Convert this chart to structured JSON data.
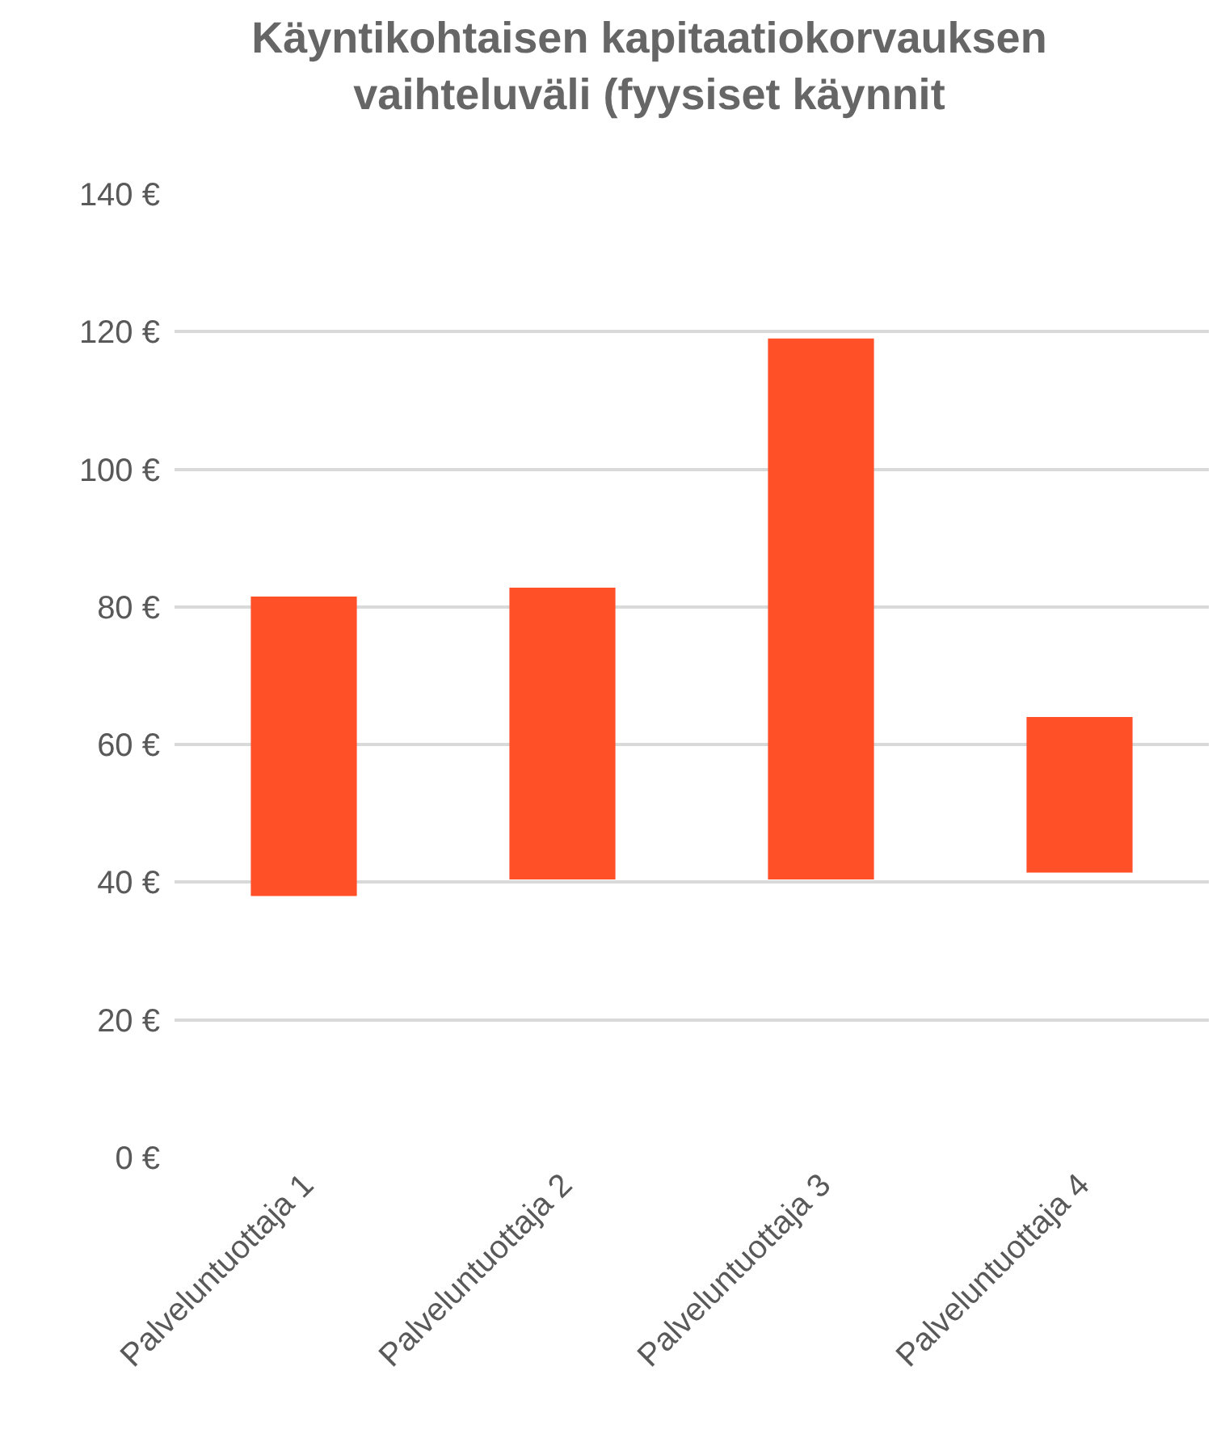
{
  "chart_data": {
    "type": "bar",
    "title": "Käyntikohtaisen kapitaatiokorvauksen\nvaihteluväli (fyysiset käynnit",
    "categories": [
      "Palveluntuottaja 1",
      "Palveluntuottaja 2",
      "Palveluntuottaja 3",
      "Palveluntuottaja 4"
    ],
    "base": [
      38,
      40.4,
      40.4,
      41.4
    ],
    "values": [
      43.5,
      42.4,
      78.6,
      22.6
    ],
    "color": "#ff5028",
    "ylim": [
      0,
      140
    ],
    "yticks": [
      {
        "value": 0,
        "label": "0 €"
      },
      {
        "value": 20,
        "label": "20 €"
      },
      {
        "value": 40,
        "label": "40 €"
      },
      {
        "value": 60,
        "label": "60 €"
      },
      {
        "value": 80,
        "label": "80 €"
      },
      {
        "value": 100,
        "label": "100 €"
      },
      {
        "value": 120,
        "label": "120 €"
      },
      {
        "value": 140,
        "label": "140 €"
      }
    ],
    "grid": "y"
  }
}
